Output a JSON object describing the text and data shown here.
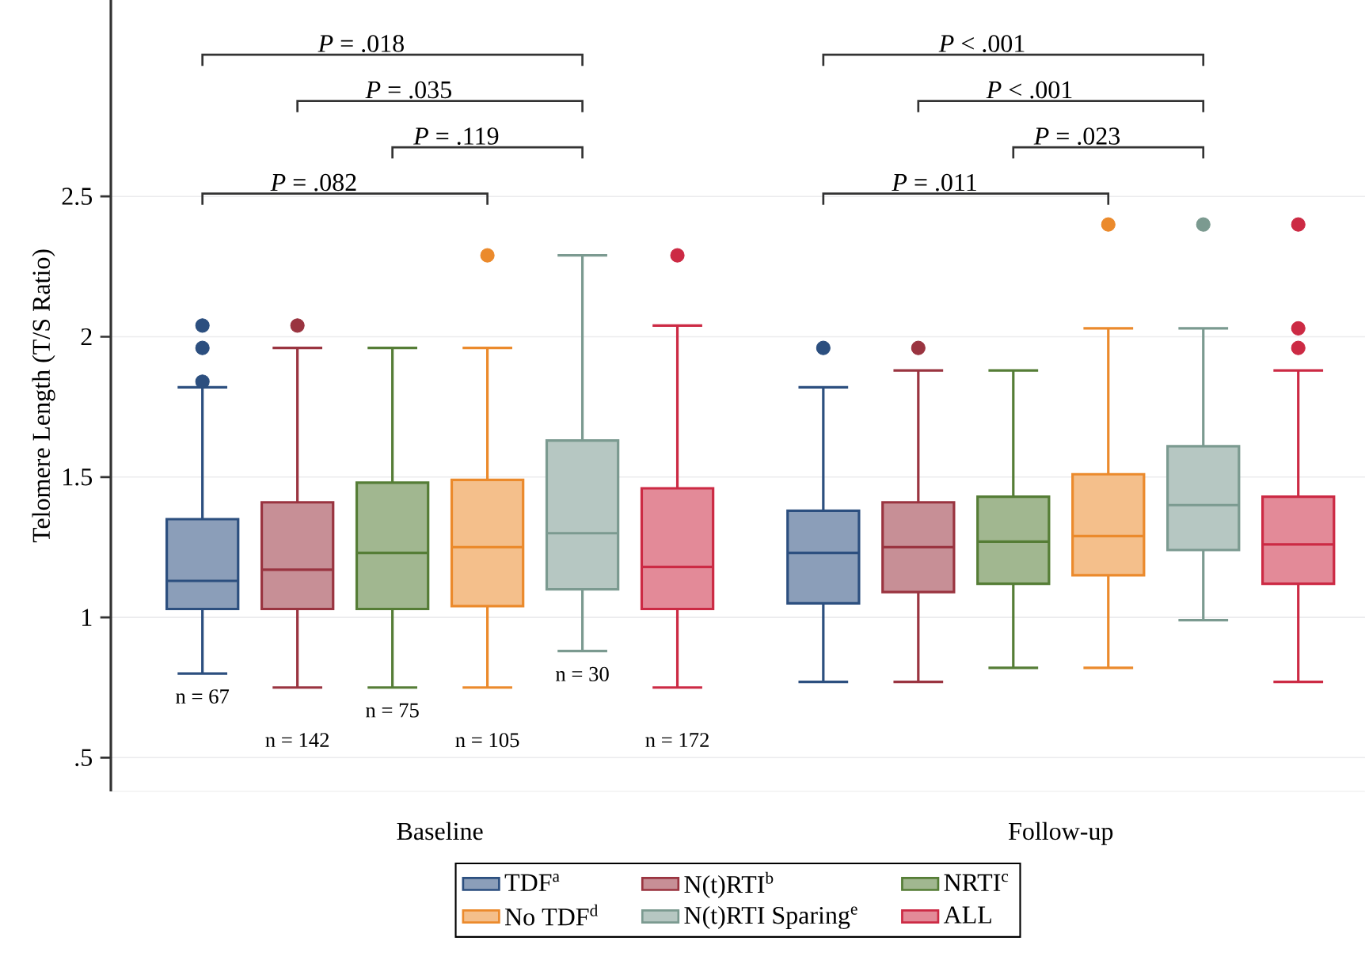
{
  "chart_data": {
    "type": "box",
    "ylabel": "Telomere Length (T/S Ratio)",
    "categories": [
      "Baseline",
      "Follow-up"
    ],
    "ylim": [
      0.38,
      3.2
    ],
    "yticks": [
      {
        "value": 0.5,
        "label": ".5"
      },
      1,
      1.5,
      2,
      2.5
    ],
    "grid": "y",
    "legend": "bottom",
    "marker": "circle",
    "series": [
      {
        "name": "TDF$^{a}$",
        "color": "#2c4f7f",
        "boxes": [
          {
            "low": 0.8,
            "q1": 1.03,
            "median": 1.13,
            "q3": 1.35,
            "high": 1.82,
            "outliers": [
              1.84,
              1.96,
              2.04
            ]
          },
          {
            "low": 0.77,
            "q1": 1.05,
            "median": 1.23,
            "q3": 1.38,
            "high": 1.82,
            "outliers": [
              1.96
            ]
          }
        ]
      },
      {
        "name": "N(t)RTI$^{b}$",
        "color": "#9a3440",
        "boxes": [
          {
            "low": 0.75,
            "q1": 1.03,
            "median": 1.17,
            "q3": 1.41,
            "high": 1.96,
            "outliers": [
              2.04
            ]
          },
          {
            "low": 0.77,
            "q1": 1.09,
            "median": 1.25,
            "q3": 1.41,
            "high": 1.88,
            "outliers": [
              1.96
            ]
          }
        ]
      },
      {
        "name": "NRTI$^{c}$",
        "color": "#557d36",
        "boxes": [
          {
            "low": 0.75,
            "q1": 1.03,
            "median": 1.23,
            "q3": 1.48,
            "high": 1.96
          },
          {
            "low": 0.82,
            "q1": 1.12,
            "median": 1.27,
            "q3": 1.43,
            "high": 1.88
          }
        ]
      },
      {
        "name": "No TDF$^{d}$",
        "color": "#eb8a2c",
        "boxes": [
          {
            "low": 0.75,
            "q1": 1.04,
            "median": 1.25,
            "q3": 1.49,
            "high": 1.96,
            "outliers": [
              2.29
            ]
          },
          {
            "low": 0.82,
            "q1": 1.15,
            "median": 1.29,
            "q3": 1.51,
            "high": 2.03,
            "outliers": [
              2.4
            ]
          }
        ]
      },
      {
        "name": "N(t)RTI Sparing$^{e}$",
        "color": "#7b9a90",
        "boxes": [
          {
            "low": 0.88,
            "q1": 1.1,
            "median": 1.3,
            "q3": 1.63,
            "high": 2.29
          },
          {
            "low": 0.99,
            "q1": 1.24,
            "median": 1.4,
            "q3": 1.61,
            "high": 2.03,
            "outliers": [
              2.4
            ]
          }
        ]
      },
      {
        "name": "ALL",
        "color": "#cc2a44",
        "boxes": [
          {
            "low": 0.75,
            "q1": 1.03,
            "median": 1.18,
            "q3": 1.46,
            "high": 2.04,
            "outliers": [
              2.29
            ]
          },
          {
            "low": 0.77,
            "q1": 1.12,
            "median": 1.26,
            "q3": 1.43,
            "high": 1.88,
            "outliers": [
              1.96,
              2.03,
              2.4
            ]
          }
        ]
      }
    ],
    "annotations": [
      "n = 67",
      "n = 142",
      "n = 75",
      "n = 105",
      "n = 30",
      "n = 172",
      "*P* = .018",
      "*P* = .035",
      "*P* = .119",
      "*P* = .082",
      "*P* < .001",
      "*P* < .001",
      "*P* = .023",
      "*P* = .011"
    ]
  }
}
